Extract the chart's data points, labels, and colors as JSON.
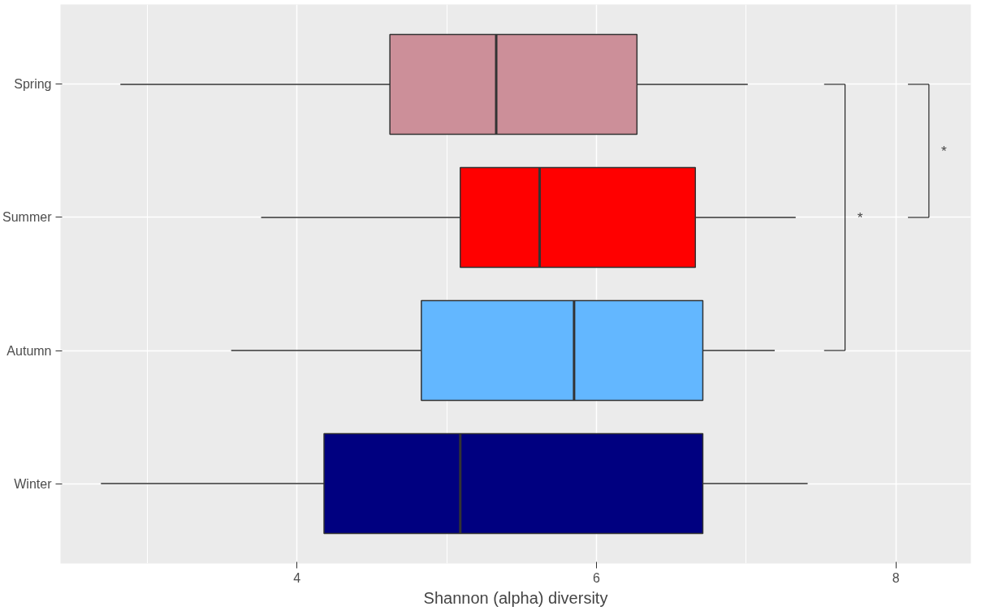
{
  "chart_data": {
    "type": "box",
    "orientation": "horizontal",
    "xlabel": "Shannon (alpha) diversity",
    "categories": [
      "Spring",
      "Summer",
      "Autumn",
      "Winter"
    ],
    "colors": [
      "#cc8f99",
      "#ff0000",
      "#63b7ff",
      "#000080"
    ],
    "boxes": [
      {
        "low": 2.82,
        "q1": 4.62,
        "median": 5.33,
        "q3": 6.27,
        "high": 7.01
      },
      {
        "low": 3.76,
        "q1": 5.09,
        "median": 5.62,
        "q3": 6.66,
        "high": 7.33
      },
      {
        "low": 3.56,
        "q1": 4.83,
        "median": 5.85,
        "q3": 6.71,
        "high": 7.19
      },
      {
        "low": 2.69,
        "q1": 4.18,
        "median": 5.09,
        "q3": 6.71,
        "high": 7.41
      }
    ],
    "xlim": [
      2.42,
      8.5
    ],
    "xticks": [
      4,
      6,
      8
    ],
    "grid": true,
    "annotations": [
      "*",
      "*"
    ]
  }
}
